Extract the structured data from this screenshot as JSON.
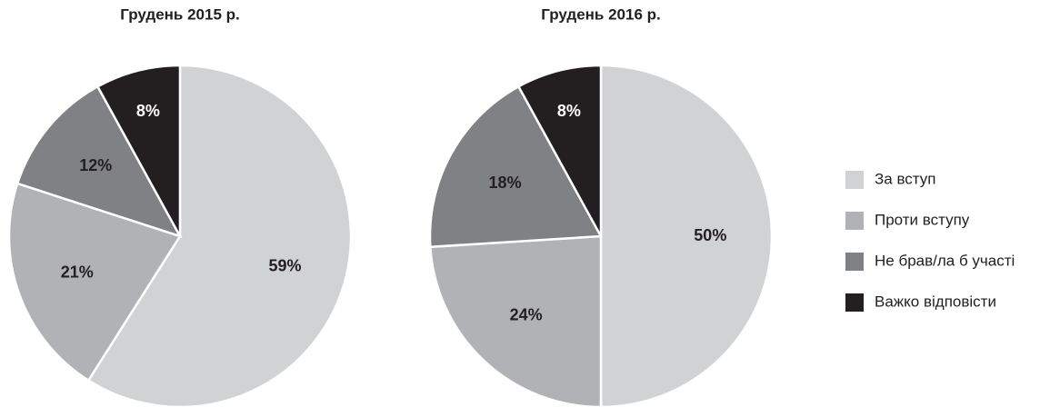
{
  "chart_data": [
    {
      "type": "pie",
      "title": "Грудень 2015 р.",
      "categories": [
        "За вступ",
        "Проти вступу",
        "Не брав/ла б участі",
        "Важко відповісти"
      ],
      "values": [
        59,
        21,
        12,
        8
      ],
      "value_labels": [
        "59%",
        "21%",
        "12%",
        "8%"
      ],
      "colors": [
        "#d1d2d4",
        "#b1b2b5",
        "#808184",
        "#231f20"
      ],
      "legend": "right"
    },
    {
      "type": "pie",
      "title": "Грудень 2016 р.",
      "categories": [
        "За вступ",
        "Проти вступу",
        "Не брав/ла б участі",
        "Важко відповісти"
      ],
      "values": [
        50,
        24,
        18,
        8
      ],
      "value_labels": [
        "50%",
        "24%",
        "18%",
        "8%"
      ],
      "colors": [
        "#d1d2d4",
        "#b1b2b5",
        "#808184",
        "#231f20"
      ],
      "legend": "right"
    }
  ]
}
